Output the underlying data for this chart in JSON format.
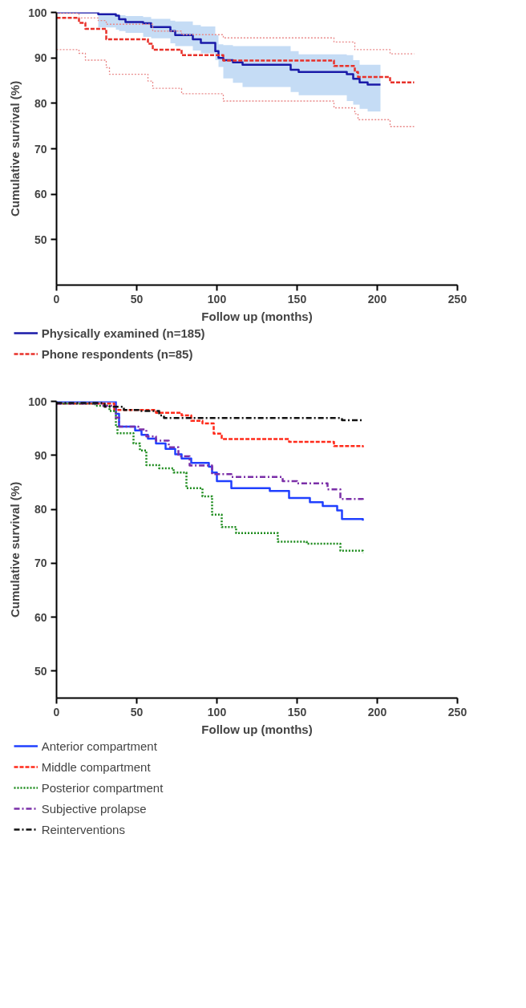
{
  "chart_data": [
    {
      "type": "step",
      "xlabel": "Follow up (months)",
      "ylabel": "Cumulative survival (%)",
      "xlim": [
        0,
        250
      ],
      "ylim": [
        40,
        100
      ],
      "xticks": [
        0,
        50,
        100,
        150,
        200,
        250
      ],
      "yticks": [
        50,
        60,
        70,
        80,
        90,
        100
      ],
      "grid": false,
      "legend": "bottom",
      "marker": "none",
      "series": [
        {
          "name": "Physically examined (n=185)",
          "color": "#1a1aa8",
          "line_style": "solid",
          "x": [
            0,
            26,
            37,
            39,
            43,
            54,
            59,
            71,
            74,
            85,
            90,
            99,
            101,
            104,
            110,
            116,
            146,
            151,
            181,
            185,
            189,
            194,
            202
          ],
          "values": [
            100,
            99.6,
            99.3,
            98.5,
            97.9,
            97.6,
            96.8,
            95.9,
            95,
            94.1,
            93.3,
            91.5,
            90,
            89.5,
            89,
            88.5,
            87.4,
            86.9,
            86.4,
            85.4,
            84.6,
            84.1,
            84.1
          ],
          "upper": [
            100,
            99.6,
            99.5,
            99.4,
            99.2,
            99,
            98.6,
            98.2,
            98,
            97.2,
            96.9,
            95,
            93,
            92.8,
            92.6,
            92.6,
            91.5,
            90.8,
            90.6,
            89.5,
            88.5,
            88.5,
            88.5
          ],
          "lower": [
            100,
            96.7,
            96.2,
            95.9,
            95.5,
            94.6,
            94.3,
            93.2,
            92.6,
            91.6,
            91,
            89.5,
            88,
            85.5,
            84.5,
            83.6,
            82.5,
            81.8,
            80.5,
            79.7,
            78.8,
            78.2,
            78.2
          ]
        },
        {
          "name": "Phone respondents (n=85)",
          "color": "#e8312a",
          "line_style": "dashed",
          "x": [
            0,
            14,
            18,
            31,
            57,
            60,
            78,
            104,
            173,
            186,
            188,
            208,
            223
          ],
          "values": [
            98.8,
            97.7,
            96.4,
            94.1,
            93.1,
            91.8,
            90.6,
            89.4,
            88.2,
            86.9,
            85.8,
            84.6,
            84.6
          ]
        },
        {
          "color": "#e98a8a",
          "line_style": "dotted",
          "x": [
            0,
            14,
            26,
            31,
            60,
            78,
            104,
            173,
            186,
            208,
            223
          ],
          "values": [
            99.8,
            98.8,
            98.2,
            97.4,
            95.9,
            95.1,
            94.4,
            93.5,
            91.8,
            90.9,
            90.9
          ]
        },
        {
          "color": "#e98a8a",
          "line_style": "dotted",
          "x": [
            0,
            14,
            18,
            31,
            33,
            57,
            60,
            78,
            104,
            173,
            186,
            188,
            208,
            223
          ],
          "values": [
            91.8,
            91,
            89.5,
            87.9,
            86.4,
            84.9,
            83.3,
            82.1,
            80.5,
            79,
            77.7,
            76.4,
            74.9,
            74.9
          ]
        }
      ]
    },
    {
      "type": "step",
      "xlabel": "Follow up (months)",
      "ylabel": "Cumulative survival (%)",
      "xlim": [
        0,
        250
      ],
      "ylim": [
        45,
        100
      ],
      "xticks": [
        0,
        50,
        100,
        150,
        200,
        250
      ],
      "yticks": [
        50,
        60,
        70,
        80,
        90,
        100
      ],
      "grid": false,
      "legend": "bottom",
      "marker": "none",
      "series": [
        {
          "name": "Anterior compartment",
          "color": "#2040ff",
          "line_style": "solid",
          "x": [
            0,
            37,
            39,
            49,
            53,
            57,
            62,
            68,
            74,
            78,
            84,
            95,
            97,
            100,
            109,
            133,
            145,
            158,
            166,
            175,
            178,
            191
          ],
          "values": [
            100,
            97.7,
            95.3,
            94.6,
            93.8,
            93.1,
            92.2,
            91.2,
            90.2,
            89.4,
            88.6,
            87.9,
            86.8,
            85.2,
            83.9,
            83.4,
            82.1,
            81.3,
            80.6,
            79.8,
            78.2,
            77.9
          ]
        },
        {
          "name": "Middle compartment",
          "color": "#ff2a1a",
          "line_style": "dashed",
          "x": [
            0,
            36,
            62,
            78,
            84,
            91,
            98,
            103,
            145,
            173,
            191
          ],
          "values": [
            99.6,
            98.4,
            97.9,
            97.4,
            96.4,
            95.9,
            94,
            93,
            92.5,
            91.7,
            91.5
          ]
        },
        {
          "name": "Posterior compartment",
          "color": "#1a8a1a",
          "line_style": "dotted",
          "x": [
            0,
            24,
            33,
            37,
            38,
            48,
            52,
            56,
            64,
            73,
            81,
            91,
            97,
            103,
            112,
            138,
            156,
            177,
            191
          ],
          "values": [
            99.6,
            99.2,
            98.2,
            95.6,
            94.1,
            92.2,
            90.9,
            88.2,
            87.6,
            86.8,
            83.9,
            82.4,
            79,
            76.7,
            75.6,
            74,
            73.6,
            72.3,
            71.9
          ]
        },
        {
          "name": "Subjective prolapse",
          "color": "#7b2fa8",
          "line_style": "dashdot",
          "x": [
            0,
            28,
            37,
            39,
            51,
            56,
            62,
            70,
            76,
            83,
            97,
            109,
            141,
            150,
            169,
            177,
            191
          ],
          "values": [
            99.6,
            99.2,
            97,
            95.3,
            94.8,
            93.5,
            92.7,
            91.5,
            89.8,
            88.1,
            86.5,
            86,
            85.2,
            84.8,
            83.7,
            81.9,
            81.3
          ]
        },
        {
          "name": "Reinterventions",
          "color": "#111111",
          "line_style": "dashdot",
          "x": [
            0,
            30,
            42,
            52,
            64,
            67,
            178,
            191
          ],
          "values": [
            99.7,
            99,
            98.4,
            98.2,
            97.4,
            96.9,
            96.5,
            96.4
          ]
        }
      ]
    }
  ]
}
